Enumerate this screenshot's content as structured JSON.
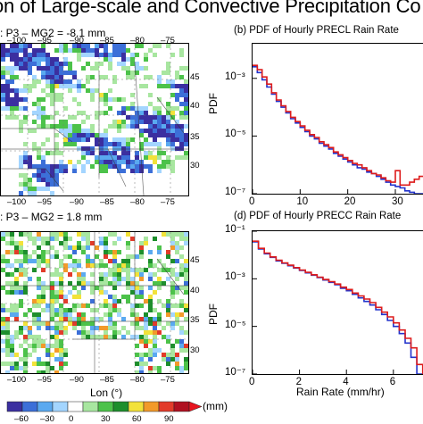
{
  "header": {
    "title": "on of Large-scale and Convective Precipitation Co"
  },
  "maps": [
    {
      "id": "top",
      "label": ": P3 – MG2 = -8.1 mm"
    },
    {
      "id": "bottom",
      "label": ": P3 – MG2 = 1.8 mm"
    }
  ],
  "map_lon_ticks": [
    "–100",
    "–95",
    "–90",
    "–85",
    "–80",
    "–75"
  ],
  "map_lat_ticks": [
    "45",
    "40",
    "35",
    "30"
  ],
  "map_top_lon_ticks": [
    "–100",
    "–95",
    "–90",
    "–85",
    "–80",
    "–75"
  ],
  "map_xlabel": "Lon (°)",
  "colorbar": {
    "ticks": [
      "–60",
      "–30",
      "0",
      "30",
      "60",
      "90"
    ],
    "unit": "(mm)",
    "colors": [
      "#3b2fa0",
      "#3c6fd8",
      "#5aa9f0",
      "#a3d5ff",
      "#ffffff",
      "#a8e6a0",
      "#4cc24a",
      "#1d8e2c",
      "#f2e23a",
      "#f29a2a",
      "#e23b2a",
      "#b01020"
    ]
  },
  "chart_data": [
    {
      "type": "line",
      "title": "(b) PDF of Hourly PRECL Rain Rate",
      "xlabel": "",
      "ylabel": "PDF",
      "xlim": [
        0,
        36
      ],
      "ylim_log10": [
        -7,
        -1.8
      ],
      "yscale": "log",
      "xticks": [
        "0",
        "10",
        "20",
        "30"
      ],
      "yticks": [
        "10⁻³",
        "10⁻⁵",
        "10⁻⁷"
      ],
      "series": [
        {
          "color": "#2233cc",
          "x": [
            0,
            1,
            2,
            3,
            4,
            5,
            6,
            7,
            8,
            9,
            10,
            11,
            12,
            13,
            14,
            15,
            16,
            17,
            18,
            19,
            20,
            21,
            22,
            23,
            24,
            25,
            26,
            27,
            28,
            29,
            30,
            31,
            32,
            33,
            34,
            35
          ],
          "y": [
            -2.6,
            -2.8,
            -3.05,
            -3.3,
            -3.55,
            -3.8,
            -4.0,
            -4.2,
            -4.4,
            -4.55,
            -4.7,
            -4.85,
            -5.0,
            -5.1,
            -5.25,
            -5.35,
            -5.45,
            -5.6,
            -5.7,
            -5.8,
            -5.9,
            -6.0,
            -6.1,
            -6.15,
            -6.25,
            -6.3,
            -6.4,
            -6.5,
            -6.6,
            -6.7,
            -6.75,
            -6.8,
            -6.9,
            -6.95,
            -7.0,
            -7.0
          ]
        },
        {
          "color": "#dd1c1c",
          "x": [
            0,
            1,
            2,
            3,
            4,
            5,
            6,
            7,
            8,
            9,
            10,
            11,
            12,
            13,
            14,
            15,
            16,
            17,
            18,
            19,
            20,
            21,
            22,
            23,
            24,
            25,
            26,
            27,
            28,
            29,
            30,
            31,
            32,
            33,
            34,
            35
          ],
          "y": [
            -2.55,
            -2.7,
            -2.95,
            -3.2,
            -3.5,
            -3.75,
            -3.95,
            -4.15,
            -4.35,
            -4.5,
            -4.65,
            -4.8,
            -4.95,
            -5.05,
            -5.2,
            -5.3,
            -5.4,
            -5.55,
            -5.65,
            -5.75,
            -5.85,
            -5.95,
            -6.0,
            -6.1,
            -6.2,
            -6.3,
            -6.35,
            -6.45,
            -6.55,
            -6.6,
            -6.2,
            -6.7,
            -6.7,
            -6.6,
            -6.5,
            -6.4
          ]
        }
      ]
    },
    {
      "type": "line",
      "title": "(d) PDF of Hourly PRECC Rain Rate",
      "xlabel": "Rain Rate (mm/hr)",
      "ylabel": "PDF",
      "xlim": [
        0,
        7.3
      ],
      "ylim_log10": [
        -7,
        -1
      ],
      "yscale": "log",
      "xticks": [
        "0",
        "2",
        "4",
        "6"
      ],
      "yticks": [
        "10⁻¹",
        "10⁻³",
        "10⁻⁵",
        "10⁻⁷"
      ],
      "series": [
        {
          "color": "#2233cc",
          "x": [
            0,
            0.25,
            0.5,
            0.75,
            1,
            1.25,
            1.5,
            1.75,
            2,
            2.25,
            2.5,
            2.75,
            3,
            3.25,
            3.5,
            3.75,
            4,
            4.25,
            4.5,
            4.75,
            5,
            5.25,
            5.5,
            5.75,
            6,
            6.25,
            6.5,
            6.75,
            7
          ],
          "y": [
            -1.45,
            -1.75,
            -1.95,
            -2.1,
            -2.25,
            -2.35,
            -2.45,
            -2.55,
            -2.65,
            -2.75,
            -2.85,
            -2.95,
            -3.05,
            -3.15,
            -3.25,
            -3.4,
            -3.5,
            -3.65,
            -3.8,
            -3.95,
            -4.1,
            -4.3,
            -4.5,
            -4.75,
            -5.0,
            -5.3,
            -5.7,
            -6.3,
            -7.0
          ]
        },
        {
          "color": "#dd1c1c",
          "x": [
            0,
            0.25,
            0.5,
            0.75,
            1,
            1.25,
            1.5,
            1.75,
            2,
            2.25,
            2.5,
            2.75,
            3,
            3.25,
            3.5,
            3.75,
            4,
            4.25,
            4.5,
            4.75,
            5,
            5.25,
            5.5,
            5.75,
            6,
            6.25,
            6.5,
            6.75,
            7
          ],
          "y": [
            -1.42,
            -1.72,
            -1.92,
            -2.08,
            -2.22,
            -2.33,
            -2.43,
            -2.53,
            -2.63,
            -2.73,
            -2.83,
            -2.93,
            -3.03,
            -3.12,
            -3.22,
            -3.35,
            -3.45,
            -3.6,
            -3.72,
            -3.85,
            -4.0,
            -4.2,
            -4.4,
            -4.6,
            -4.85,
            -5.15,
            -5.5,
            -5.9,
            -6.6
          ]
        }
      ]
    }
  ]
}
